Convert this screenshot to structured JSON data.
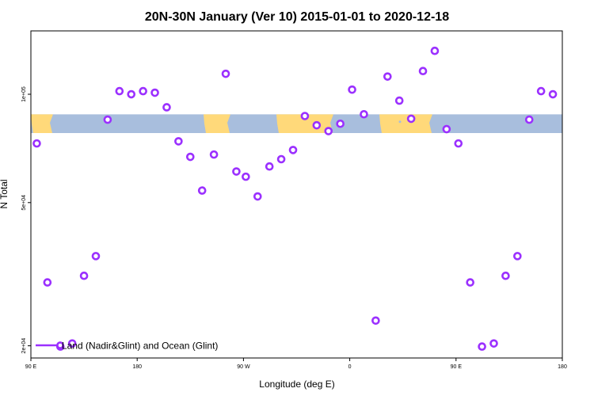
{
  "chart_data": {
    "type": "scatter",
    "title": "20N-30N January (Ver 10)   2015-01-01 to 2020-12-18",
    "xlabel": "Longitude (deg E)",
    "ylabel": "N Total",
    "x_ticks": [
      {
        "value": 90,
        "label": "90 E"
      },
      {
        "value": 180,
        "label": "180"
      },
      {
        "value": 270,
        "label": "90 W"
      },
      {
        "value": 360,
        "label": "0"
      },
      {
        "value": 450,
        "label": "90 E"
      },
      {
        "value": 540,
        "label": "180"
      }
    ],
    "y_ticks": [
      {
        "value": 20000,
        "label": "2e+04"
      },
      {
        "value": 50000,
        "label": "5e+04"
      },
      {
        "value": 100000,
        "label": "1e+05"
      }
    ],
    "xlim": [
      90,
      540
    ],
    "ylim": [
      18500,
      150000
    ],
    "y_scale": "log",
    "grid": false,
    "legend_position": "bottom-left",
    "map_strip": {
      "y_range": [
        78000,
        88000
      ]
    },
    "colors": {
      "points": "#9B30FF",
      "land": "#FFD97A",
      "ocean": "#A8BEDD",
      "frame": "#000000"
    },
    "series": [
      {
        "name": "Land (Nadir&Glint) and Ocean (Glint)",
        "points": [
          [
            95,
            73000
          ],
          [
            104,
            30000
          ],
          [
            115,
            19900
          ],
          [
            125,
            20300
          ],
          [
            135,
            31300
          ],
          [
            145,
            35500
          ],
          [
            155,
            85000
          ],
          [
            165,
            102000
          ],
          [
            175,
            100000
          ],
          [
            185,
            102000
          ],
          [
            195,
            101000
          ],
          [
            205,
            92000
          ],
          [
            215,
            74000
          ],
          [
            225,
            67000
          ],
          [
            235,
            54000
          ],
          [
            245,
            68000
          ],
          [
            255,
            114000
          ],
          [
            264,
            61000
          ],
          [
            272,
            59000
          ],
          [
            282,
            52000
          ],
          [
            292,
            63000
          ],
          [
            302,
            66000
          ],
          [
            312,
            70000
          ],
          [
            322,
            87000
          ],
          [
            332,
            82000
          ],
          [
            342,
            79000
          ],
          [
            352,
            82800
          ],
          [
            362,
            103000
          ],
          [
            372,
            88000
          ],
          [
            382,
            23500
          ],
          [
            392,
            112000
          ],
          [
            402,
            96000
          ],
          [
            412,
            85500
          ],
          [
            422,
            116000
          ],
          [
            432,
            132000
          ],
          [
            442,
            80000
          ],
          [
            452,
            73000
          ],
          [
            462,
            30000
          ],
          [
            472,
            19900
          ],
          [
            482,
            20300
          ],
          [
            492,
            31300
          ],
          [
            502,
            35500
          ],
          [
            512,
            85000
          ],
          [
            522,
            102000
          ],
          [
            532,
            100000
          ]
        ]
      }
    ]
  }
}
